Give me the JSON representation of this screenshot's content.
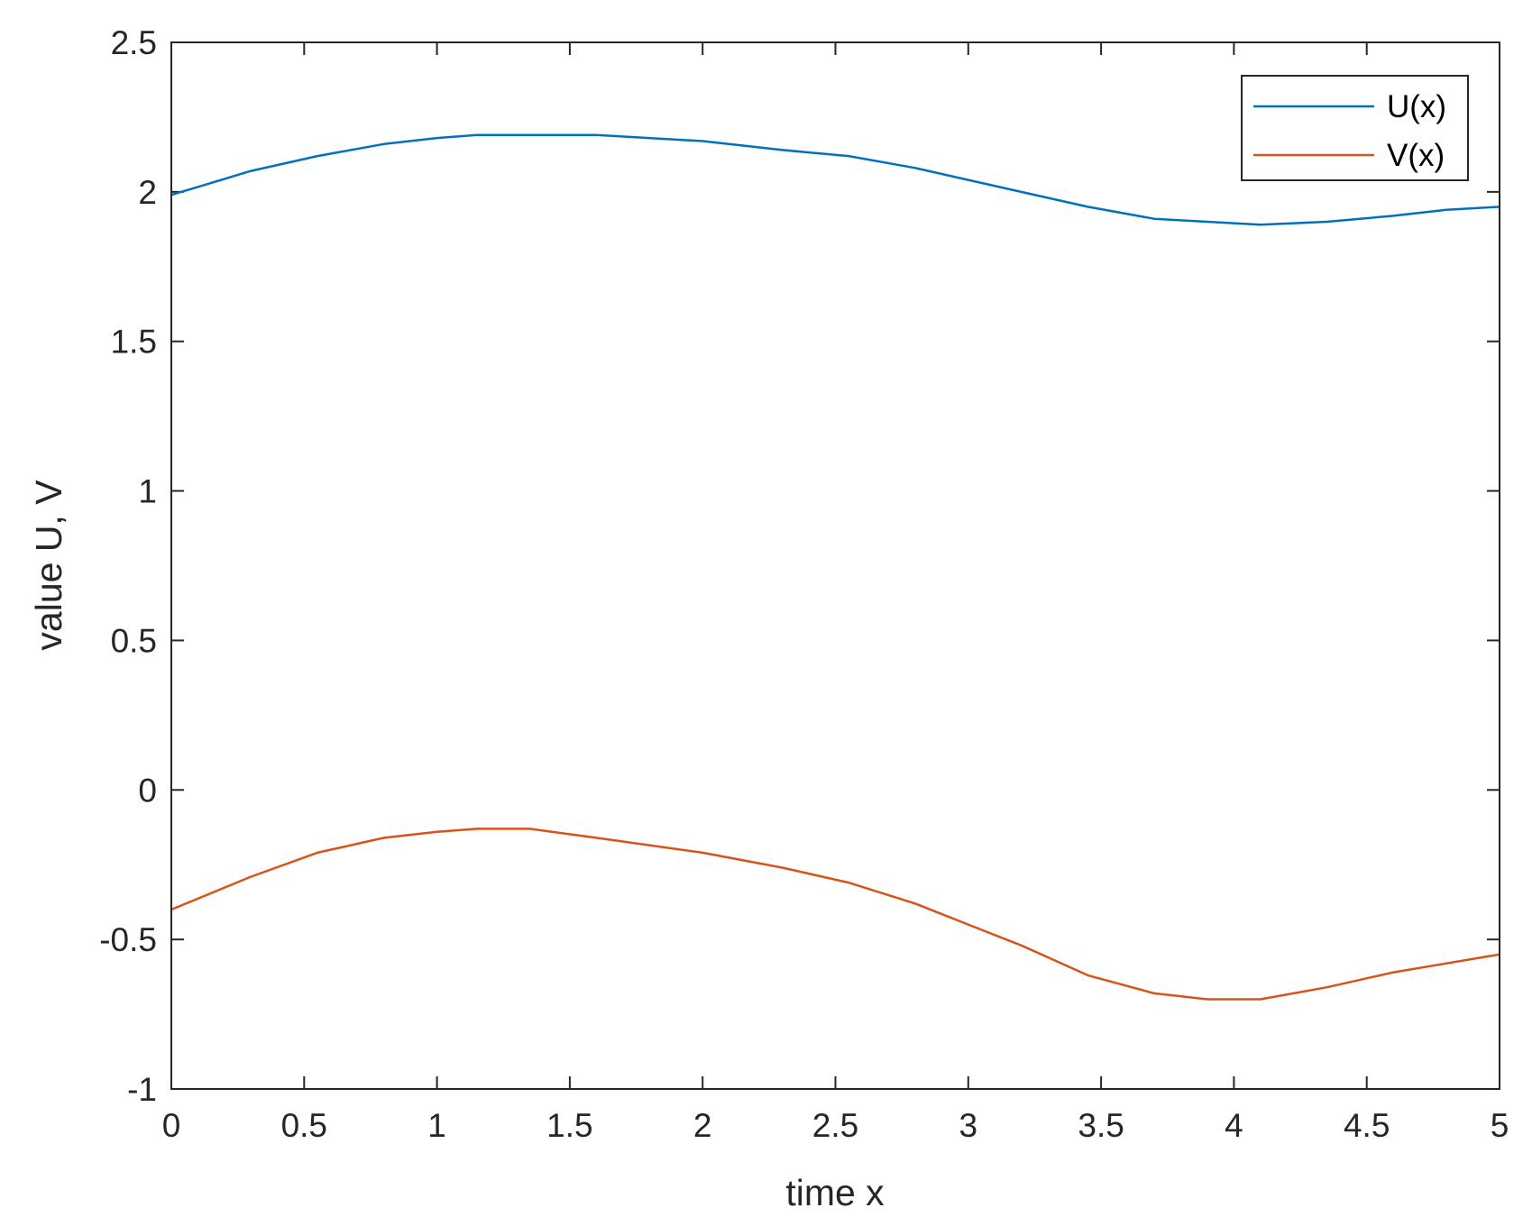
{
  "chart_data": {
    "type": "line",
    "title": "",
    "xlabel": "time x",
    "ylabel": "value U, V",
    "xlim": [
      0,
      5
    ],
    "ylim": [
      -1,
      2.5
    ],
    "xticks": [
      "0",
      "0.5",
      "1",
      "1.5",
      "2",
      "2.5",
      "3",
      "3.5",
      "4",
      "4.5",
      "5"
    ],
    "yticks": [
      "-1",
      "-0.5",
      "0",
      "0.5",
      "1",
      "1.5",
      "2",
      "2.5"
    ],
    "grid": false,
    "legend_position": "top-right",
    "x": [
      0,
      0.3,
      0.55,
      0.8,
      1.0,
      1.15,
      1.35,
      1.6,
      2.0,
      2.3,
      2.55,
      2.8,
      3.0,
      3.2,
      3.45,
      3.7,
      3.9,
      4.1,
      4.35,
      4.6,
      4.8,
      5.0
    ],
    "series": [
      {
        "name": "U(x)",
        "color": "#0072BD",
        "values": [
          1.99,
          2.07,
          2.12,
          2.16,
          2.18,
          2.19,
          2.19,
          2.19,
          2.17,
          2.14,
          2.12,
          2.08,
          2.04,
          2.0,
          1.95,
          1.91,
          1.9,
          1.89,
          1.9,
          1.92,
          1.94,
          1.95
        ]
      },
      {
        "name": "V(x)",
        "color": "#D95319",
        "values": [
          -0.4,
          -0.29,
          -0.21,
          -0.16,
          -0.14,
          -0.13,
          -0.13,
          -0.16,
          -0.21,
          -0.26,
          -0.31,
          -0.38,
          -0.45,
          -0.52,
          -0.62,
          -0.68,
          -0.7,
          -0.7,
          -0.66,
          -0.61,
          -0.58,
          -0.55
        ]
      }
    ]
  }
}
